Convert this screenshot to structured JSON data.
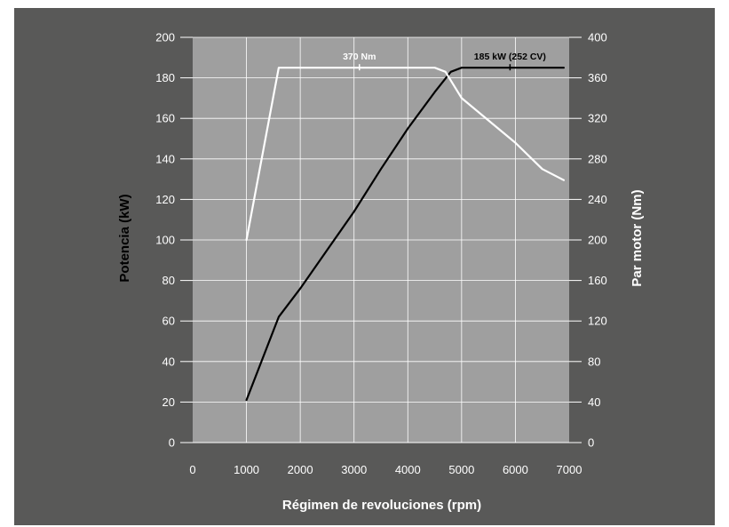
{
  "chart_data": {
    "type": "line",
    "xlabel": "Régimen de revoluciones (rpm)",
    "ylabel_left": "Potencia (kW)",
    "ylabel_right": "Par motor (Nm)",
    "xlim": [
      0,
      7000
    ],
    "ylim_left": [
      0,
      200
    ],
    "ylim_right": [
      0,
      400
    ],
    "x_ticks": [
      0,
      1000,
      2000,
      3000,
      4000,
      5000,
      6000,
      7000
    ],
    "y_left_ticks": [
      0,
      20,
      40,
      60,
      80,
      100,
      120,
      140,
      160,
      180,
      200
    ],
    "y_right_ticks": [
      0,
      40,
      80,
      120,
      160,
      200,
      240,
      280,
      320,
      360,
      400
    ],
    "grid": true,
    "series": [
      {
        "name": "",
        "axis": "left",
        "color": "#000000",
        "x": [
          1000,
          1600,
          2000,
          2500,
          3000,
          3500,
          4000,
          4500,
          4800,
          5000,
          5500,
          6000,
          6500,
          6900
        ],
        "y": [
          21,
          62,
          76,
          95,
          114,
          135,
          155,
          173,
          183,
          185,
          185,
          185,
          185,
          185
        ]
      },
      {
        "name": "",
        "axis": "right",
        "color": "#ffffff",
        "x": [
          1000,
          1600,
          2000,
          3000,
          4000,
          4500,
          4700,
          5000,
          5500,
          6000,
          6500,
          6900
        ],
        "y": [
          200,
          370,
          370,
          370,
          370,
          370,
          366,
          340,
          318,
          296,
          270,
          259
        ]
      }
    ],
    "annotations": [
      {
        "text": "370 Nm",
        "x": 3100,
        "y": 370,
        "axis": "right",
        "color": "#ffffff"
      },
      {
        "text": "185 kW (252 CV)",
        "x": 5900,
        "y": 185,
        "axis": "left",
        "color": "#000000"
      }
    ],
    "colors": {
      "background": "#595958",
      "plot_area": "#9f9f9f",
      "grid": "#ffffff"
    }
  }
}
